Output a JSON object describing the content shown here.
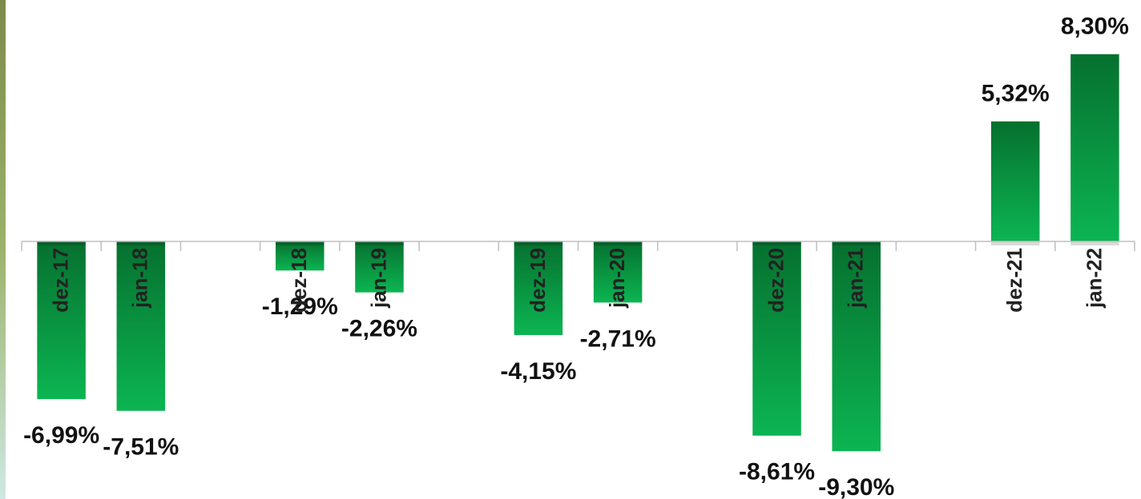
{
  "chart_data": {
    "type": "bar",
    "categories": [
      "dez-17",
      "jan-18",
      null,
      "dez-18",
      "jan-19",
      null,
      "dez-19",
      "jan-20",
      null,
      "dez-20",
      "jan-21",
      null,
      "dez-21",
      "jan-22"
    ],
    "values": [
      -6.99,
      -7.51,
      null,
      -1.29,
      -2.26,
      null,
      -4.15,
      -2.71,
      null,
      -8.61,
      -9.3,
      null,
      5.32,
      8.3
    ],
    "value_labels": [
      "-6,99%",
      "-7,51%",
      null,
      "-1,29%",
      "-2,26%",
      null,
      "-4,15%",
      "-2,71%",
      null,
      "-8,61%",
      "-9,30%",
      null,
      "5,32%",
      "8,30%"
    ],
    "color": "#0cb552",
    "ylim": [
      -10,
      9
    ]
  }
}
